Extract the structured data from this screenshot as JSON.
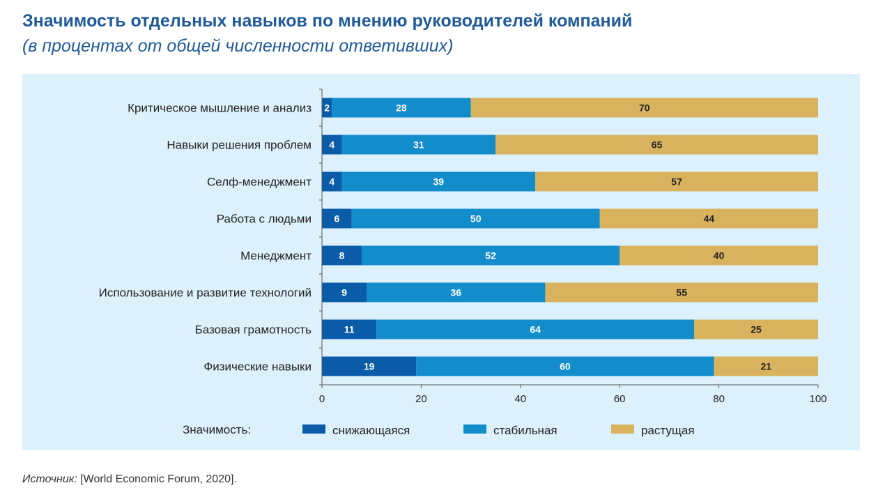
{
  "header": {
    "title": "Значимость отдельных навыков по мнению руководителей компаний",
    "subtitle": "(в процентах от общей численности ответивших)"
  },
  "footer": {
    "source_label": "Источник:",
    "source_text": " [World Economic Forum, 2020]."
  },
  "chart_data": {
    "type": "bar",
    "orientation": "horizontal",
    "stacked": true,
    "title": "Значимость отдельных навыков по мнению руководителей компаний",
    "subtitle": "(в процентах от общей численности ответивших)",
    "categories": [
      "Критическое мышление и анализ",
      "Навыки решения проблем",
      "Селф-менеджмент",
      "Работа с людьми",
      "Менеджмент",
      "Использование и развитие технологий",
      "Базовая грамотность",
      "Физические навыки"
    ],
    "series": [
      {
        "name": "снижающаяся",
        "color": "#0a5ca8",
        "label_color": "#ffffff",
        "values": [
          2,
          4,
          4,
          6,
          8,
          9,
          11,
          19
        ]
      },
      {
        "name": "стабильная",
        "color": "#138ccb",
        "label_color": "#ffffff",
        "values": [
          28,
          31,
          39,
          50,
          52,
          36,
          64,
          60
        ]
      },
      {
        "name": "растущая",
        "color": "#d9b25e",
        "label_color": "#222222",
        "values": [
          70,
          65,
          57,
          44,
          40,
          55,
          25,
          21
        ]
      }
    ],
    "xlim": [
      0,
      100
    ],
    "xticks": [
      0,
      20,
      40,
      60,
      80,
      100
    ],
    "xlabel": "",
    "ylabel": "",
    "grid": false,
    "legend": {
      "title": "Значимость:",
      "placement": "bottom"
    },
    "background_color": "#dcf1fb"
  }
}
